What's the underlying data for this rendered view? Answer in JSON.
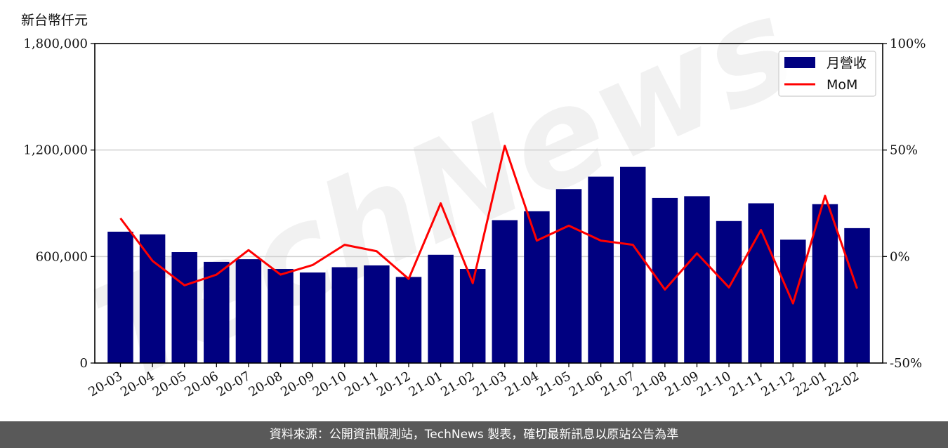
{
  "unit_label": "新台幣仟元",
  "watermark": "TechNews",
  "footer_text": "資料來源：公開資訊觀測站，TechNews 製表，確切最新訊息以原站公告為準",
  "colors": {
    "bar": "#000080",
    "line": "#ff0000",
    "grid": "#d0d0d0",
    "footer_bg": "#595959"
  },
  "chart_data": {
    "type": "bar",
    "categories": [
      "20-03",
      "20-04",
      "20-05",
      "20-06",
      "20-07",
      "20-08",
      "20-09",
      "20-10",
      "20-11",
      "20-12",
      "21-01",
      "21-02",
      "21-03",
      "21-04",
      "21-05",
      "21-06",
      "21-07",
      "21-08",
      "21-09",
      "21-10",
      "21-11",
      "21-12",
      "22-01",
      "22-02"
    ],
    "series": [
      {
        "name": "月營收",
        "type": "bar",
        "axis": "left",
        "values": [
          740000,
          725000,
          625000,
          570000,
          585000,
          530000,
          510000,
          540000,
          550000,
          485000,
          610000,
          530000,
          805000,
          855000,
          980000,
          1050000,
          1105000,
          930000,
          940000,
          800000,
          900000,
          695000,
          895000,
          760000
        ]
      },
      {
        "name": "MoM",
        "type": "line",
        "axis": "right",
        "values": [
          18,
          -2,
          -13.5,
          -8.5,
          3,
          -8.5,
          -4,
          5.5,
          2.5,
          -10.5,
          25,
          -12.5,
          52,
          7.5,
          14.5,
          7.5,
          5.5,
          -15.5,
          1.5,
          -14.5,
          12.5,
          -22,
          28.5,
          -15
        ]
      }
    ],
    "y_left": {
      "min": 0,
      "max": 1800000,
      "ticks": [
        0,
        600000,
        1200000,
        1800000
      ],
      "tick_labels": [
        "0",
        "600,000",
        "1,200,000",
        "1,800,000"
      ]
    },
    "y_right": {
      "min": -50,
      "max": 100,
      "ticks": [
        -50,
        0,
        50,
        100
      ],
      "tick_labels": [
        "-50%",
        "0%",
        "50%",
        "100%"
      ]
    },
    "grid": "horizontal",
    "legend_position": "top-right"
  }
}
